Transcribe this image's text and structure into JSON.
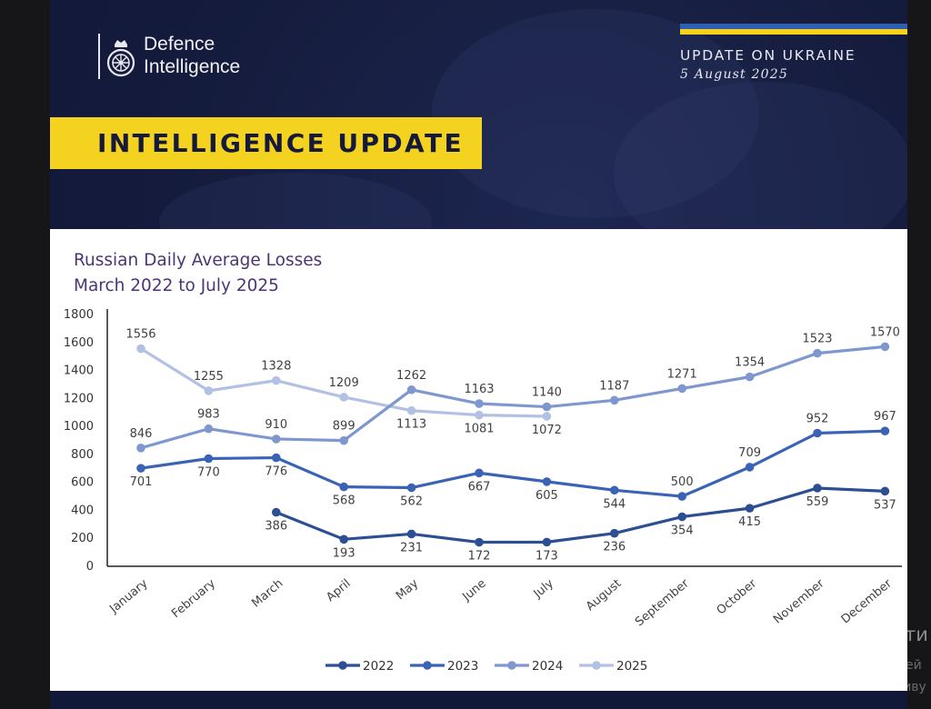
{
  "header": {
    "logo_line1": "Defence",
    "logo_line2": "Intelligence",
    "update_title": "UPDATE ON UKRAINE",
    "update_date": "5 August 2025",
    "banner": "INTELLIGENCE UPDATE"
  },
  "background_page": {
    "activate_title": "Акти",
    "activate_line1": "Перей",
    "activate_line2": "активу"
  },
  "colors": {
    "navy": "#141b3c",
    "banner_yellow": "#f4d220",
    "flag_blue": "#2f5fae",
    "flag_yellow": "#f6d21e",
    "title_purple": "#4a3575",
    "series_2022": "#2c4f94",
    "series_2023": "#3b63b5",
    "series_2024": "#7f97cf",
    "series_2025": "#b2c1e3"
  },
  "chart_data": {
    "type": "line",
    "title_line1": "Russian Daily Average Losses",
    "title_line2": "March 2022 to July 2025",
    "categories": [
      "January",
      "February",
      "March",
      "April",
      "May",
      "June",
      "July",
      "August",
      "September",
      "October",
      "November",
      "December"
    ],
    "ylim": [
      0,
      1800
    ],
    "yticks": [
      0,
      200,
      400,
      600,
      800,
      1000,
      1200,
      1400,
      1600,
      1800
    ],
    "legend_position": "bottom",
    "grid": false,
    "series": [
      {
        "name": "2022",
        "color": "#2c4f94",
        "values": [
          null,
          null,
          386,
          193,
          231,
          172,
          173,
          236,
          354,
          415,
          559,
          537
        ],
        "label_pos": [
          "",
          "",
          "below",
          "below",
          "below",
          "below",
          "below",
          "below",
          "below",
          "below",
          "below",
          "below"
        ]
      },
      {
        "name": "2023",
        "color": "#3b63b5",
        "values": [
          701,
          770,
          776,
          568,
          562,
          667,
          605,
          544,
          500,
          709,
          952,
          967
        ],
        "label_pos": [
          "below",
          "below",
          "below",
          "below",
          "below",
          "below",
          "below",
          "below",
          "above",
          "above",
          "above",
          "above"
        ]
      },
      {
        "name": "2024",
        "color": "#7f97cf",
        "values": [
          846,
          983,
          910,
          899,
          1262,
          1163,
          1140,
          1187,
          1271,
          1354,
          1523,
          1570
        ],
        "label_pos": [
          "above",
          "above",
          "above",
          "above",
          "above",
          "above",
          "above",
          "above",
          "above",
          "above",
          "above",
          "above"
        ]
      },
      {
        "name": "2025",
        "color": "#b2c1e3",
        "values": [
          1556,
          1255,
          1328,
          1209,
          1113,
          1081,
          1072,
          null,
          null,
          null,
          null,
          null
        ],
        "label_pos": [
          "above",
          "above",
          "above",
          "above",
          "below",
          "below",
          "below",
          "",
          "",
          "",
          "",
          ""
        ]
      }
    ]
  }
}
